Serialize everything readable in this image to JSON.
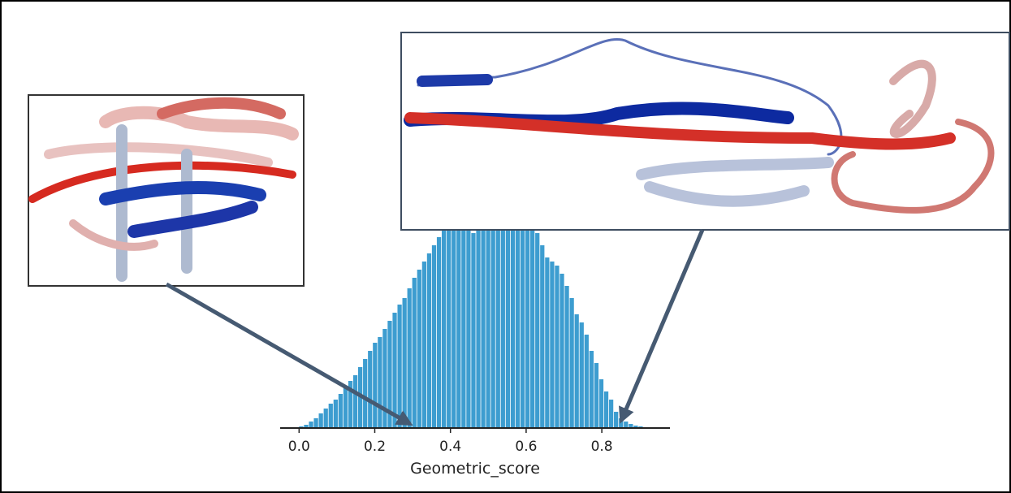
{
  "chart_data": {
    "type": "histogram",
    "x_label": "Geometric_score",
    "color": "#3d9dd0",
    "bins": [
      0,
      0.013,
      0.026,
      0.039,
      0.052,
      0.065,
      0.078,
      0.091,
      0.104,
      0.117,
      0.13,
      0.143,
      0.156,
      0.169,
      0.182,
      0.195,
      0.208,
      0.221,
      0.234,
      0.247,
      0.26,
      0.273,
      0.286,
      0.299,
      0.312,
      0.325,
      0.338,
      0.351,
      0.364,
      0.377,
      0.39,
      0.403,
      0.416,
      0.429,
      0.442,
      0.455,
      0.468,
      0.481,
      0.494,
      0.507,
      0.52,
      0.533,
      0.546,
      0.559,
      0.572,
      0.585,
      0.598,
      0.611,
      0.624,
      0.637,
      0.65,
      0.663,
      0.676,
      0.689,
      0.702,
      0.715,
      0.728,
      0.741,
      0.754,
      0.767,
      0.78,
      0.793,
      0.806,
      0.819,
      0.832,
      0.845,
      0.858,
      0.871,
      0.884,
      0.897,
      0.91
    ],
    "values": [
      2,
      4,
      8,
      12,
      18,
      24,
      30,
      35,
      42,
      50,
      58,
      65,
      75,
      85,
      95,
      105,
      112,
      122,
      132,
      142,
      152,
      160,
      172,
      185,
      195,
      205,
      215,
      225,
      235,
      245,
      250,
      255,
      255,
      255,
      250,
      240,
      260,
      265,
      270,
      268,
      275,
      300,
      325,
      334,
      295,
      290,
      270,
      250,
      240,
      225,
      210,
      205,
      200,
      190,
      175,
      160,
      140,
      130,
      115,
      95,
      80,
      60,
      45,
      35,
      20,
      12,
      8,
      5,
      3,
      2
    ],
    "xlim": [
      -0.05,
      0.98
    ],
    "ylim": [
      0,
      360
    ],
    "xticks": [
      {
        "value": 0,
        "label": "0.0"
      },
      0.2,
      0.4,
      0.6,
      0.8
    ]
  }
}
